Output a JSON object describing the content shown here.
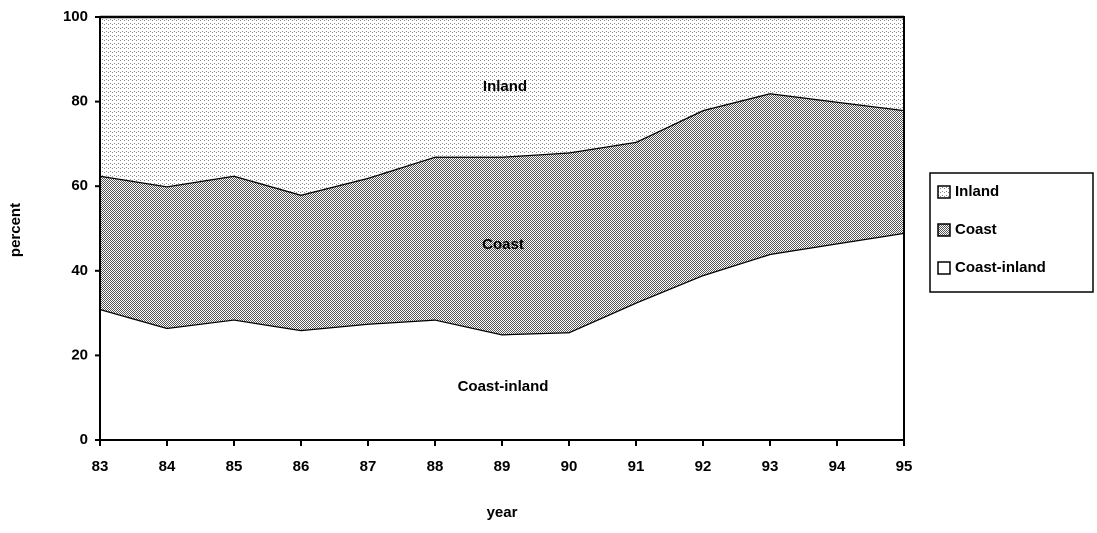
{
  "chart_data": {
    "type": "area",
    "stacked": true,
    "x_label": "year",
    "y_label": "percent",
    "x": [
      83,
      84,
      85,
      86,
      87,
      88,
      89,
      90,
      91,
      92,
      93,
      94,
      95
    ],
    "series": [
      {
        "name": "Inland",
        "color": "#888888",
        "values": [
          37.5,
          40,
          37.5,
          42,
          38,
          33,
          33,
          32,
          29.5,
          22,
          18,
          20,
          22
        ]
      },
      {
        "name": "Coast",
        "color": "#555555",
        "values": [
          31.5,
          33.5,
          34,
          32,
          34.5,
          38.5,
          42,
          42.5,
          38,
          39,
          38,
          33.5,
          29
        ]
      },
      {
        "name": "Coast-inland",
        "color": "#ffffff",
        "values": [
          31,
          26.5,
          28.5,
          26,
          27.5,
          28.5,
          25,
          25.5,
          32.5,
          39,
          44,
          46.5,
          49
        ]
      }
    ],
    "xlim": [
      83,
      95
    ],
    "xticks": [
      83,
      84,
      85,
      86,
      87,
      88,
      89,
      90,
      91,
      92,
      93,
      94,
      95
    ],
    "ylim": [
      0,
      100
    ],
    "yticks": [
      0,
      20,
      40,
      60,
      80,
      100
    ],
    "grid": false,
    "legend": "right"
  }
}
